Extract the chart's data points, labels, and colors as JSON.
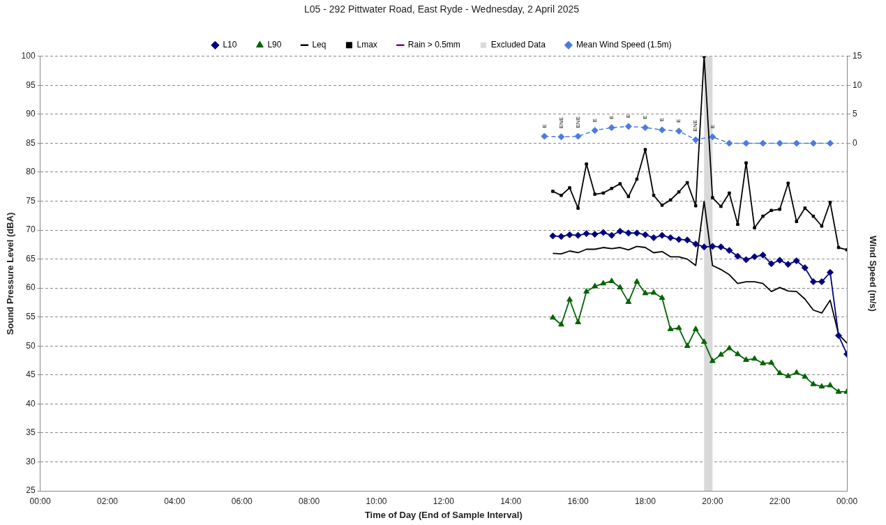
{
  "chart_data": {
    "type": "line",
    "title": "L05 - 292 Pittwater Road, East Ryde - Wednesday, 2 April 2025",
    "xlabel": "Time of Day (End of Sample Interval)",
    "ylabel": "Sound Pressure Level (dBA)",
    "y2label": "Wind Speed (m/s)",
    "x": [
      15.25,
      15.5,
      15.75,
      16,
      16.25,
      16.5,
      16.75,
      17,
      17.25,
      17.5,
      17.75,
      18,
      18.25,
      18.5,
      18.75,
      19,
      19.25,
      19.5,
      19.75,
      20,
      20.25,
      20.5,
      20.75,
      21,
      21.25,
      21.5,
      21.75,
      22,
      22.25,
      22.5,
      22.75,
      23,
      23.25,
      23.5,
      23.75,
      24
    ],
    "xlim": [
      0,
      24
    ],
    "xticks": [
      {
        "value": 0,
        "label": "00:00"
      },
      {
        "value": 2,
        "label": "02:00"
      },
      {
        "value": 4,
        "label": "04:00"
      },
      {
        "value": 6,
        "label": "06:00"
      },
      {
        "value": 8,
        "label": "08:00"
      },
      {
        "value": 10,
        "label": "10:00"
      },
      {
        "value": 12,
        "label": "12:00"
      },
      {
        "value": 14,
        "label": "14:00"
      },
      {
        "value": 16,
        "label": "16:00"
      },
      {
        "value": 18,
        "label": "18:00"
      },
      {
        "value": 20,
        "label": "20:00"
      },
      {
        "value": 22,
        "label": "22:00"
      },
      {
        "value": 24,
        "label": "00:00"
      }
    ],
    "ylim": [
      25,
      100
    ],
    "yticks": [
      25,
      30,
      35,
      40,
      45,
      50,
      55,
      60,
      65,
      70,
      75,
      80,
      85,
      90,
      95,
      100
    ],
    "y2lim": [
      -60,
      15
    ],
    "y2ticks": [
      0,
      5,
      10,
      15
    ],
    "grid": "y",
    "legend": "top",
    "series": [
      {
        "name": "L10",
        "color": "#000080",
        "marker": "diamond",
        "values": [
          69.0,
          68.9,
          69.2,
          69.1,
          69.4,
          69.3,
          69.6,
          69.1,
          69.8,
          69.5,
          69.5,
          69.2,
          68.7,
          69.1,
          68.7,
          68.4,
          68.3,
          67.6,
          67.1,
          67.2,
          67.1,
          66.5,
          65.5,
          64.9,
          65.4,
          65.7,
          64.2,
          64.8,
          64.1,
          64.7,
          63.5,
          61.1,
          61.1,
          62.7,
          51.8,
          48.6
        ]
      },
      {
        "name": "L90",
        "color": "#006400",
        "marker": "triangle",
        "values": [
          54.9,
          53.7,
          58.0,
          54.1,
          59.4,
          60.3,
          60.8,
          61.2,
          60.1,
          57.6,
          61.1,
          59.1,
          59.2,
          58.3,
          52.9,
          53.1,
          50.0,
          52.9,
          50.7,
          47.4,
          48.5,
          49.6,
          48.6,
          47.6,
          47.8,
          47.0,
          47.1,
          45.3,
          44.8,
          45.4,
          44.7,
          43.4,
          43.0,
          43.2,
          42.1,
          42.1
        ]
      },
      {
        "name": "Leq",
        "color": "#000000",
        "marker": "none",
        "values": [
          66.0,
          65.9,
          66.4,
          66.1,
          66.7,
          66.7,
          67.0,
          66.8,
          67.0,
          66.6,
          67.2,
          67.0,
          66.1,
          66.3,
          65.4,
          65.4,
          65.0,
          63.9,
          75.0,
          63.9,
          63.2,
          62.3,
          60.8,
          61.1,
          61.1,
          60.8,
          59.4,
          60.1,
          59.5,
          59.4,
          58.1,
          56.2,
          55.7,
          57.9,
          52.0,
          50.5
        ]
      },
      {
        "name": "Lmax",
        "color": "#000000",
        "marker": "square",
        "values": [
          76.7,
          76.0,
          77.3,
          73.8,
          81.4,
          76.2,
          76.4,
          77.2,
          78.0,
          75.8,
          78.8,
          83.9,
          76.0,
          74.3,
          75.2,
          76.6,
          78.2,
          74.2,
          100,
          75.6,
          74.1,
          76.4,
          71.0,
          81.6,
          70.4,
          72.4,
          73.4,
          73.6,
          78.1,
          71.5,
          73.8,
          72.4,
          70.7,
          74.8,
          67.0,
          66.6
        ]
      },
      {
        "name": "Rain > 0.5mm",
        "color": "#800080",
        "values": [
          null,
          null,
          null,
          null,
          null,
          null,
          null,
          null,
          null,
          null,
          null,
          null,
          null,
          null,
          null,
          null,
          null,
          null,
          null,
          null,
          null,
          null,
          null,
          null,
          null,
          null,
          null,
          null,
          null,
          null,
          null,
          null,
          null,
          null,
          null,
          null
        ]
      },
      {
        "name": "Mean Wind Speed (1.5m)",
        "color": "#4a7ae6",
        "marker": "diamond",
        "line_style": "dashed",
        "axis": "y2",
        "x": [
          15,
          15.5,
          16,
          16.5,
          17,
          17.5,
          18,
          18.5,
          19,
          19.5,
          20,
          20.5,
          21,
          21.5,
          22,
          22.5,
          23,
          23.5
        ],
        "values": [
          1.2,
          1.1,
          1.2,
          2.2,
          2.7,
          2.9,
          2.7,
          2.3,
          2.1,
          0.6,
          1.1,
          0,
          0,
          0,
          0,
          0,
          0,
          0
        ]
      }
    ],
    "bands": [
      {
        "axis": "x",
        "from": 19.75,
        "to": 20,
        "label": "Excluded Data",
        "color": "#d9d9d9"
      }
    ],
    "annotations": [
      "E",
      "ENE",
      "ENE",
      "E",
      "E",
      "E",
      "E",
      "E",
      "E",
      "ENE",
      "E"
    ]
  }
}
